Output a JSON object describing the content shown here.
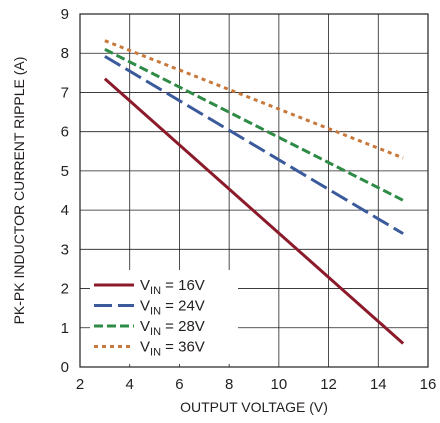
{
  "chart_data": {
    "type": "line",
    "xlabel": "OUTPUT VOLTAGE (V)",
    "ylabel": "PK-PK INDUCTOR CURRENT RIPPLE (A)",
    "xlim": [
      2,
      16
    ],
    "ylim": [
      0,
      9
    ],
    "x_ticks": [
      "2",
      "4",
      "6",
      "8",
      "10",
      "12",
      "14",
      "16"
    ],
    "y_ticks": [
      "0",
      "1",
      "2",
      "3",
      "4",
      "5",
      "6",
      "7",
      "8",
      "9"
    ],
    "grid": true,
    "legend_position": "bottom-left",
    "series": [
      {
        "name": "V",
        "subscript": "IN",
        "suffix": " = 16V",
        "color": "#8b1a2b",
        "dash": "solid",
        "x": [
          3,
          15
        ],
        "y": [
          7.35,
          0.6
        ]
      },
      {
        "name": "V",
        "subscript": "IN",
        "suffix": " = 24V",
        "color": "#3a5a9b",
        "dash": "long-dash",
        "x": [
          3,
          15
        ],
        "y": [
          7.92,
          3.4
        ]
      },
      {
        "name": "V",
        "subscript": "IN",
        "suffix": " = 28V",
        "color": "#2e8b46",
        "dash": "dash",
        "x": [
          3,
          15
        ],
        "y": [
          8.1,
          4.25
        ]
      },
      {
        "name": "V",
        "subscript": "IN",
        "suffix": " = 36V",
        "color": "#c8783a",
        "dash": "dot",
        "x": [
          3,
          15
        ],
        "y": [
          8.32,
          5.33
        ]
      }
    ]
  }
}
